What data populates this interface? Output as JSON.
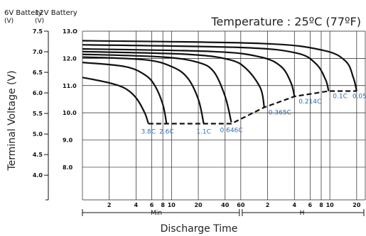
{
  "chart_data": {
    "type": "line",
    "title": "Temperature : 25ºC (77ºF)",
    "xlabel": "Discharge Time",
    "ylabel": "Terminal Voltage (V)",
    "axis_6v_header": "6V Battery",
    "axis_6v_unit": "(V)",
    "axis_12v_header": "12V Battery",
    "axis_12v_unit": "(V)",
    "ylim_6v": [
      3.4,
      7.5
    ],
    "ylim_12v": [
      6.8,
      13.0
    ],
    "yticks_6v": [
      "7.5",
      "7.0",
      "6.5",
      "6.0",
      "5.5",
      "5.0",
      "4.5",
      "4.0"
    ],
    "yticks_12v": [
      "13.O",
      "12.0",
      "11.0",
      "10.0",
      "9.0",
      "8.0"
    ],
    "yticks_12v_values": [
      13.0,
      12.0,
      11.0,
      10.0,
      9.0,
      8.0
    ],
    "xticks_min": [
      "2",
      "4",
      "6",
      "8",
      "10",
      "20",
      "40",
      "60"
    ],
    "xticks_min_values": [
      2,
      4,
      6,
      8,
      10,
      20,
      40,
      60
    ],
    "xticks_h": [
      "2",
      "4",
      "6",
      "8",
      "10",
      "20"
    ],
    "xticks_h_values": [
      120,
      240,
      360,
      480,
      600,
      1200
    ],
    "xlim_minutes": [
      1,
      1500
    ],
    "x_scale": "log",
    "grid": true,
    "min_label": "Min",
    "h_label": "H",
    "series": [
      {
        "name": "3.8C",
        "x": [
          1,
          2,
          3,
          4,
          5,
          5.5
        ],
        "y": [
          11.3,
          11.1,
          10.9,
          10.55,
          10.0,
          9.6
        ]
      },
      {
        "name": "2.6C",
        "x": [
          1,
          3,
          5,
          6.5,
          8,
          8.8
        ],
        "y": [
          11.85,
          11.7,
          11.4,
          11.0,
          10.3,
          9.6
        ]
      },
      {
        "name": "1.1C",
        "x": [
          1,
          5,
          10,
          15,
          20,
          23
        ],
        "y": [
          12.05,
          11.95,
          11.7,
          11.3,
          10.5,
          9.6
        ]
      },
      {
        "name": "0.646C",
        "x": [
          1,
          8,
          20,
          30,
          40,
          47
        ],
        "y": [
          12.15,
          12.05,
          11.85,
          11.5,
          10.6,
          9.65
        ]
      },
      {
        "name": "0.365C",
        "x": [
          1,
          15,
          45,
          70,
          100,
          110
        ],
        "y": [
          12.25,
          12.15,
          11.95,
          11.6,
          10.9,
          10.2
        ]
      },
      {
        "name": "0.214C",
        "x": [
          1,
          30,
          100,
          170,
          220,
          240
        ],
        "y": [
          12.35,
          12.25,
          12.05,
          11.7,
          11.1,
          10.6
        ]
      },
      {
        "name": "0.1C",
        "x": [
          1,
          60,
          250,
          420,
          540,
          580
        ],
        "y": [
          12.5,
          12.4,
          12.2,
          11.8,
          11.2,
          10.8
        ]
      },
      {
        "name": "0.054C",
        "x": [
          1,
          100,
          500,
          900,
          1100,
          1200
        ],
        "y": [
          12.65,
          12.55,
          12.3,
          11.9,
          11.3,
          10.8
        ]
      }
    ],
    "end_voltage": {
      "x": [
        5.5,
        8.8,
        23,
        47,
        110,
        240,
        580,
        1200
      ],
      "y": [
        9.6,
        9.6,
        9.6,
        9.6,
        10.2,
        10.6,
        10.8,
        10.8
      ]
    }
  }
}
